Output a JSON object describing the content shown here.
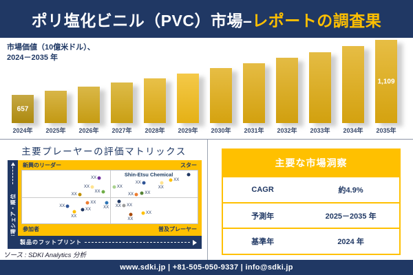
{
  "colors": {
    "navy": "#203864",
    "gold": "#FFC000",
    "divider_gray": "#9AA3B0",
    "bar_year_label": "#3A4A6B"
  },
  "header": {
    "title_main": "ポリ塩化ビニル（PVC）市場–",
    "title_accent": "レポートの調査果"
  },
  "chart_caption": {
    "line1": "市場価値（10億米ドル）、",
    "line2": "2024－2035 年"
  },
  "chart_data": {
    "type": "bar",
    "title": "市場価値（10億米ドル）、2024－2035年",
    "xlabel": "年",
    "ylabel": "10億米ドル",
    "ylim": [
      0,
      1200
    ],
    "grid": false,
    "legend": false,
    "categories": [
      "2024年",
      "2025年",
      "2026年",
      "2027年",
      "2028年",
      "2029年",
      "2030年",
      "2031年",
      "2032年",
      "2033年",
      "2034年",
      "2035年"
    ],
    "values": [
      657,
      689,
      723,
      758,
      795,
      834,
      875,
      918,
      963,
      1010,
      1059,
      1109
    ],
    "data_labels": [
      "657",
      "",
      "",
      "",
      "",
      "",
      "",
      "",
      "",
      "",
      "",
      "1,109"
    ],
    "bar_colors": [
      "#B6900F",
      "#CDA114",
      "#D0A414",
      "#D4A815",
      "#E2AF15",
      "#F1BA16",
      "#E0AB10",
      "#DEA90F",
      "#DCA80F",
      "#DDA90F",
      "#DFAA10",
      "#E0AB10"
    ]
  },
  "matrix": {
    "title": "主要プレーヤーの評価マトリックス",
    "quadrant_top_left": "新興のリーダー",
    "quadrant_top_right": "スター",
    "quadrant_bottom_left": "参加者",
    "quadrant_bottom_right": "普及プレーヤー",
    "y_axis_label": "市場シェア・順位",
    "x_axis_label": "製品のフットプリント",
    "highlight_company": "Shin-Etsu Chemical",
    "point_label": "XX",
    "points": [
      {
        "x": 44.0,
        "y": 14.8,
        "color": "#7030A0",
        "label_pos": "left"
      },
      {
        "x": 40.0,
        "y": 30.8,
        "color": "#FFE38F",
        "label_pos": "left"
      },
      {
        "x": 32.8,
        "y": 45.6,
        "color": "#BF8F00",
        "label_pos": "left"
      },
      {
        "x": 46.1,
        "y": 40.1,
        "color": "#70AD47",
        "label_pos": "left"
      },
      {
        "x": 26.0,
        "y": 68.0,
        "color": "#2F5496",
        "label_pos": "left"
      },
      {
        "x": 37.4,
        "y": 61.1,
        "color": "#ED7D31",
        "label_pos": "right"
      },
      {
        "x": 29.9,
        "y": 77.6,
        "color": "#FFC000",
        "label_pos": "below"
      },
      {
        "x": 34.5,
        "y": 73.4,
        "color": "#203864",
        "label_pos": "right"
      },
      {
        "x": 48.3,
        "y": 61.1,
        "color": "#2E75B6",
        "label_pos": "below"
      },
      {
        "x": 52.5,
        "y": 30.8,
        "color": "#A9D18E",
        "label_pos": "right"
      },
      {
        "x": 69.3,
        "y": 23.2,
        "color": "#2F5496",
        "label_pos": "left"
      },
      {
        "x": 79.5,
        "y": 23.7,
        "color": "#FFE38F",
        "label_pos": "below"
      },
      {
        "x": 84.8,
        "y": 18.1,
        "color": "#FFC000",
        "label_pos": "right"
      },
      {
        "x": 94.9,
        "y": 7.6,
        "color": "#203864",
        "label_pos": "none"
      },
      {
        "x": 68.4,
        "y": 42.7,
        "color": "#548235",
        "label_pos": "right"
      },
      {
        "x": 65.1,
        "y": 45.9,
        "color": "#ED7D31",
        "label_pos": "left"
      },
      {
        "x": 55.2,
        "y": 58.2,
        "color": "#203864",
        "label_pos": "below"
      },
      {
        "x": 58.1,
        "y": 65.8,
        "color": "#9B9B9B",
        "label_pos": "right"
      },
      {
        "x": 62.1,
        "y": 83.5,
        "color": "#A84A0B",
        "label_pos": "below"
      },
      {
        "x": 69.0,
        "y": 80.1,
        "color": "#FFC000",
        "label_pos": "right"
      }
    ]
  },
  "insights": {
    "title": "主要な市場洞察",
    "rows": [
      {
        "label": "CAGR",
        "value": "約4.9%"
      },
      {
        "label": "予測年",
        "value": "2025－2035 年"
      },
      {
        "label": "基準年",
        "value": "2024 年"
      }
    ]
  },
  "source": "ソース : SDKI Analytics 分析",
  "footer": "www.sdki.jp | +81-505-050-9337 | info@sdki.jp"
}
